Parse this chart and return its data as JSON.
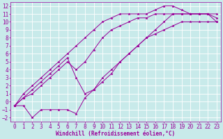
{
  "background_color": "#c8eaea",
  "grid_color": "#ffffff",
  "line_color": "#990099",
  "marker": "*",
  "marker_size": 2.5,
  "linewidth": 0.7,
  "xlim": [
    -0.5,
    23.5
  ],
  "ylim": [
    -2.5,
    12.5
  ],
  "xlabel": "Windchill (Refroidissement éolien,°C)",
  "xlabel_color": "#990099",
  "xlabel_fontsize": 5.5,
  "tick_color": "#990099",
  "tick_fontsize": 5.5,
  "xticks": [
    0,
    1,
    2,
    3,
    4,
    5,
    6,
    7,
    8,
    9,
    10,
    11,
    12,
    13,
    14,
    15,
    16,
    17,
    18,
    19,
    20,
    21,
    22,
    23
  ],
  "yticks": [
    -2,
    -1,
    0,
    1,
    2,
    3,
    4,
    5,
    6,
    7,
    8,
    9,
    10,
    11,
    12
  ],
  "series": [
    [
      [
        0,
        -0.5
      ],
      [
        1,
        -0.5
      ],
      [
        2,
        -2
      ],
      [
        3,
        -1
      ],
      [
        4,
        -1
      ],
      [
        5,
        -1
      ],
      [
        6,
        -1
      ],
      [
        7,
        -1.5
      ],
      [
        8,
        0.5
      ],
      [
        9,
        1.5
      ],
      [
        10,
        3
      ],
      [
        11,
        4
      ],
      [
        12,
        5
      ],
      [
        13,
        6
      ],
      [
        14,
        7
      ],
      [
        15,
        8
      ],
      [
        16,
        8.5
      ],
      [
        17,
        9
      ],
      [
        18,
        9.5
      ],
      [
        19,
        10
      ],
      [
        20,
        10
      ],
      [
        21,
        10
      ],
      [
        22,
        10
      ],
      [
        23,
        10
      ]
    ],
    [
      [
        0,
        -0.5
      ],
      [
        1,
        0.5
      ],
      [
        2,
        1
      ],
      [
        3,
        2
      ],
      [
        4,
        3
      ],
      [
        5,
        4
      ],
      [
        6,
        5
      ],
      [
        7,
        4
      ],
      [
        8,
        5
      ],
      [
        9,
        6.5
      ],
      [
        10,
        8
      ],
      [
        11,
        9
      ],
      [
        12,
        9.5
      ],
      [
        13,
        10
      ],
      [
        14,
        10.5
      ],
      [
        15,
        10.5
      ],
      [
        16,
        11
      ],
      [
        17,
        11
      ],
      [
        18,
        11
      ],
      [
        19,
        11
      ],
      [
        20,
        11
      ],
      [
        21,
        11
      ],
      [
        22,
        11
      ],
      [
        23,
        10.5
      ]
    ],
    [
      [
        0,
        -0.5
      ],
      [
        1,
        1
      ],
      [
        2,
        2
      ],
      [
        3,
        3
      ],
      [
        4,
        4
      ],
      [
        5,
        5
      ],
      [
        6,
        6
      ],
      [
        7,
        7
      ],
      [
        8,
        8
      ],
      [
        9,
        9
      ],
      [
        10,
        10
      ],
      [
        11,
        10.5
      ],
      [
        12,
        11
      ],
      [
        13,
        11
      ],
      [
        14,
        11
      ],
      [
        15,
        11
      ],
      [
        16,
        11.5
      ],
      [
        17,
        12
      ],
      [
        18,
        12
      ],
      [
        19,
        11.5
      ],
      [
        20,
        11
      ],
      [
        21,
        11
      ],
      [
        22,
        11
      ],
      [
        23,
        11
      ]
    ],
    [
      [
        0,
        -0.5
      ],
      [
        1,
        0.5
      ],
      [
        2,
        1.5
      ],
      [
        3,
        2.5
      ],
      [
        4,
        3.5
      ],
      [
        5,
        4.5
      ],
      [
        6,
        5.5
      ],
      [
        7,
        3
      ],
      [
        8,
        1
      ],
      [
        9,
        1.5
      ],
      [
        10,
        2.5
      ],
      [
        11,
        3.5
      ],
      [
        12,
        5
      ],
      [
        13,
        6
      ],
      [
        14,
        7
      ],
      [
        15,
        8
      ],
      [
        16,
        9
      ],
      [
        17,
        10
      ],
      [
        18,
        11
      ],
      [
        19,
        11
      ],
      [
        20,
        11
      ],
      [
        21,
        11
      ],
      [
        22,
        11
      ],
      [
        23,
        10
      ]
    ]
  ]
}
